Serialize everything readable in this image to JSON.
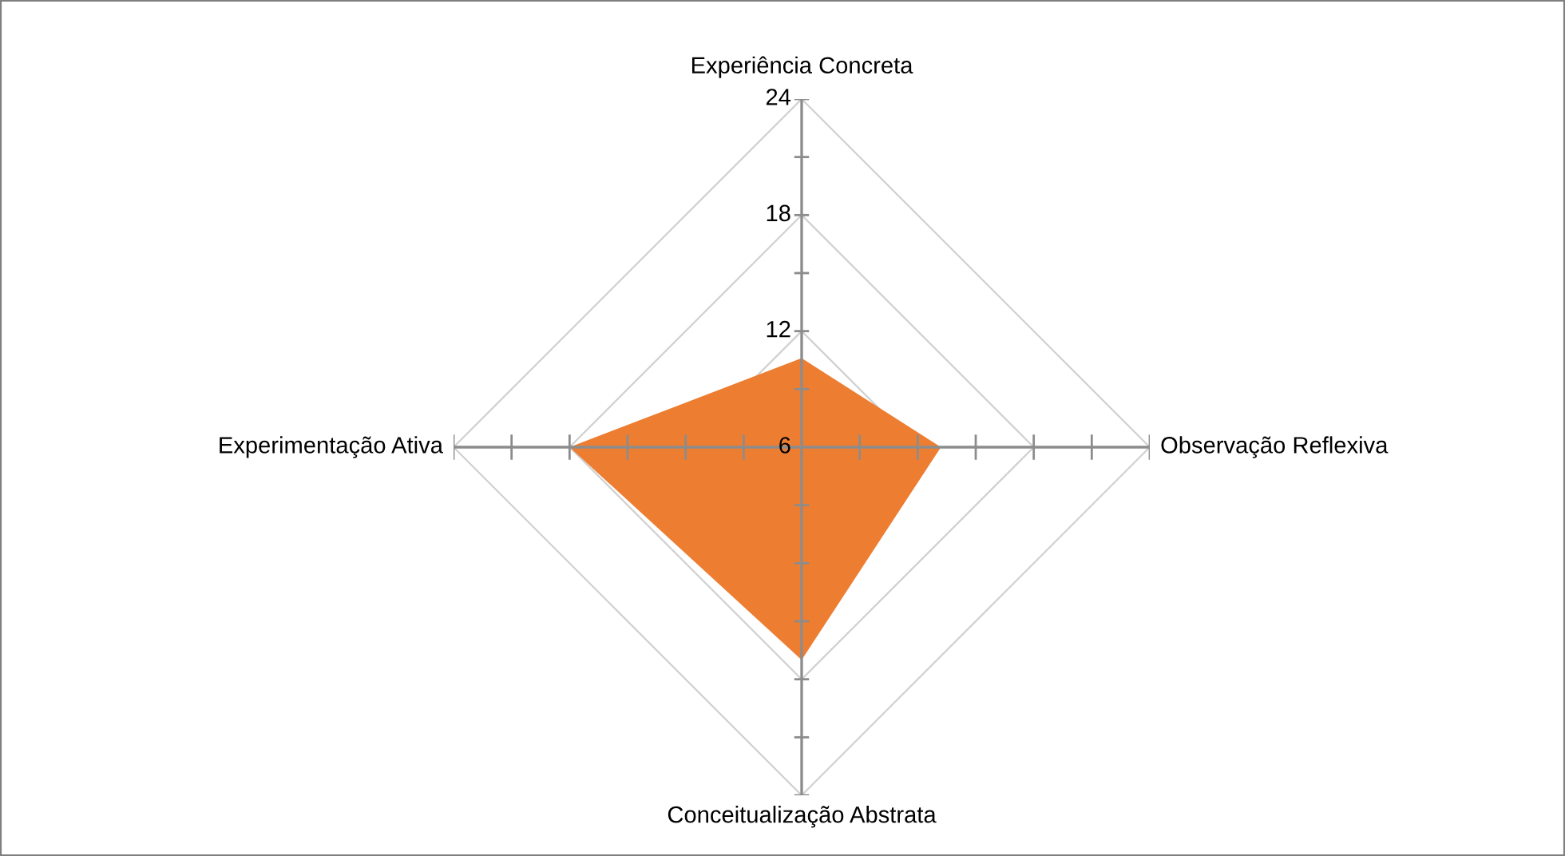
{
  "chart_data": {
    "type": "radar",
    "categories": [
      "Experiência Concreta",
      "Observação Reflexiva",
      "Conceitualização Abstrata",
      "Experimentação Ativa"
    ],
    "series": [
      {
        "color": "#ed7d31",
        "values": [
          10.6,
          13.2,
          17.0,
          18.0
        ]
      }
    ],
    "ylim": [
      6,
      24
    ],
    "yticks": [
      6,
      12,
      18,
      24
    ],
    "grid": true
  }
}
